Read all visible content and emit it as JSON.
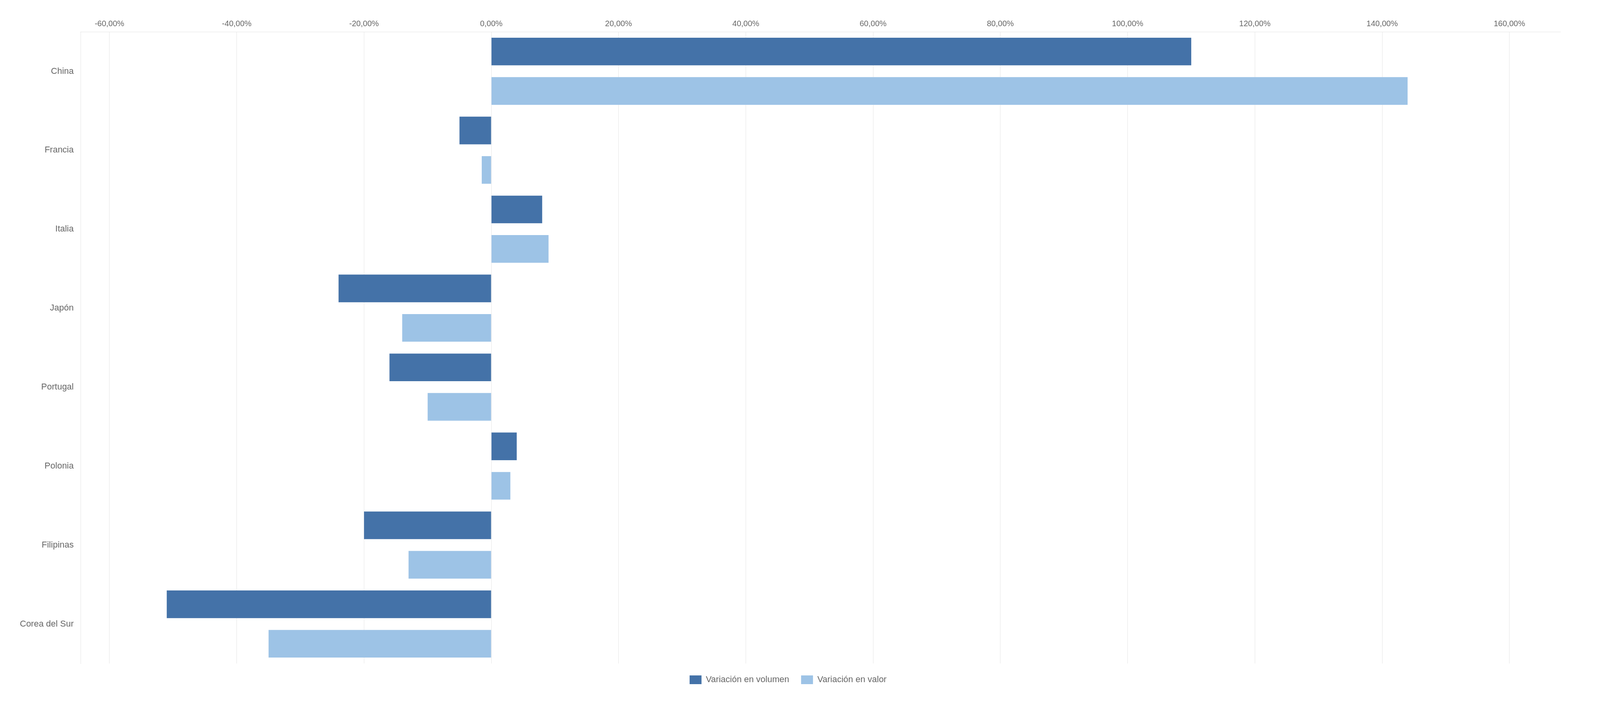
{
  "chart_data": {
    "type": "bar",
    "orientation": "horizontal",
    "categories": [
      "China",
      "Francia",
      "Italia",
      "Japón",
      "Portugal",
      "Polonia",
      "Filipinas",
      "Corea del Sur"
    ],
    "series": [
      {
        "name": "Variación en volumen",
        "color": "#4472a8",
        "values": [
          1.1,
          -0.05,
          0.08,
          -0.24,
          -0.16,
          0.04,
          -0.2,
          -0.51
        ]
      },
      {
        "name": "Variación en valor",
        "color": "#9dc3e6",
        "values": [
          1.44,
          -0.015,
          0.09,
          -0.14,
          -0.1,
          0.03,
          -0.13,
          -0.35
        ]
      }
    ],
    "xlim": [
      -0.645,
      1.68
    ],
    "xticks": [
      {
        "value": -0.6,
        "label": "-60,00%"
      },
      {
        "value": -0.4,
        "label": "-40,00%"
      },
      {
        "value": -0.2,
        "label": "-20,00%"
      },
      {
        "value": 0.0,
        "label": "0,00%"
      },
      {
        "value": 0.2,
        "label": "20,00%"
      },
      {
        "value": 0.4,
        "label": "40,00%"
      },
      {
        "value": 0.6,
        "label": "60,00%"
      },
      {
        "value": 0.8,
        "label": "80,00%"
      },
      {
        "value": 1.0,
        "label": "100,00%"
      },
      {
        "value": 1.2,
        "label": "120,00%"
      },
      {
        "value": 1.4,
        "label": "140,00%"
      },
      {
        "value": 1.6,
        "label": "160,00%"
      }
    ],
    "grid": true,
    "legend": "bottom"
  }
}
